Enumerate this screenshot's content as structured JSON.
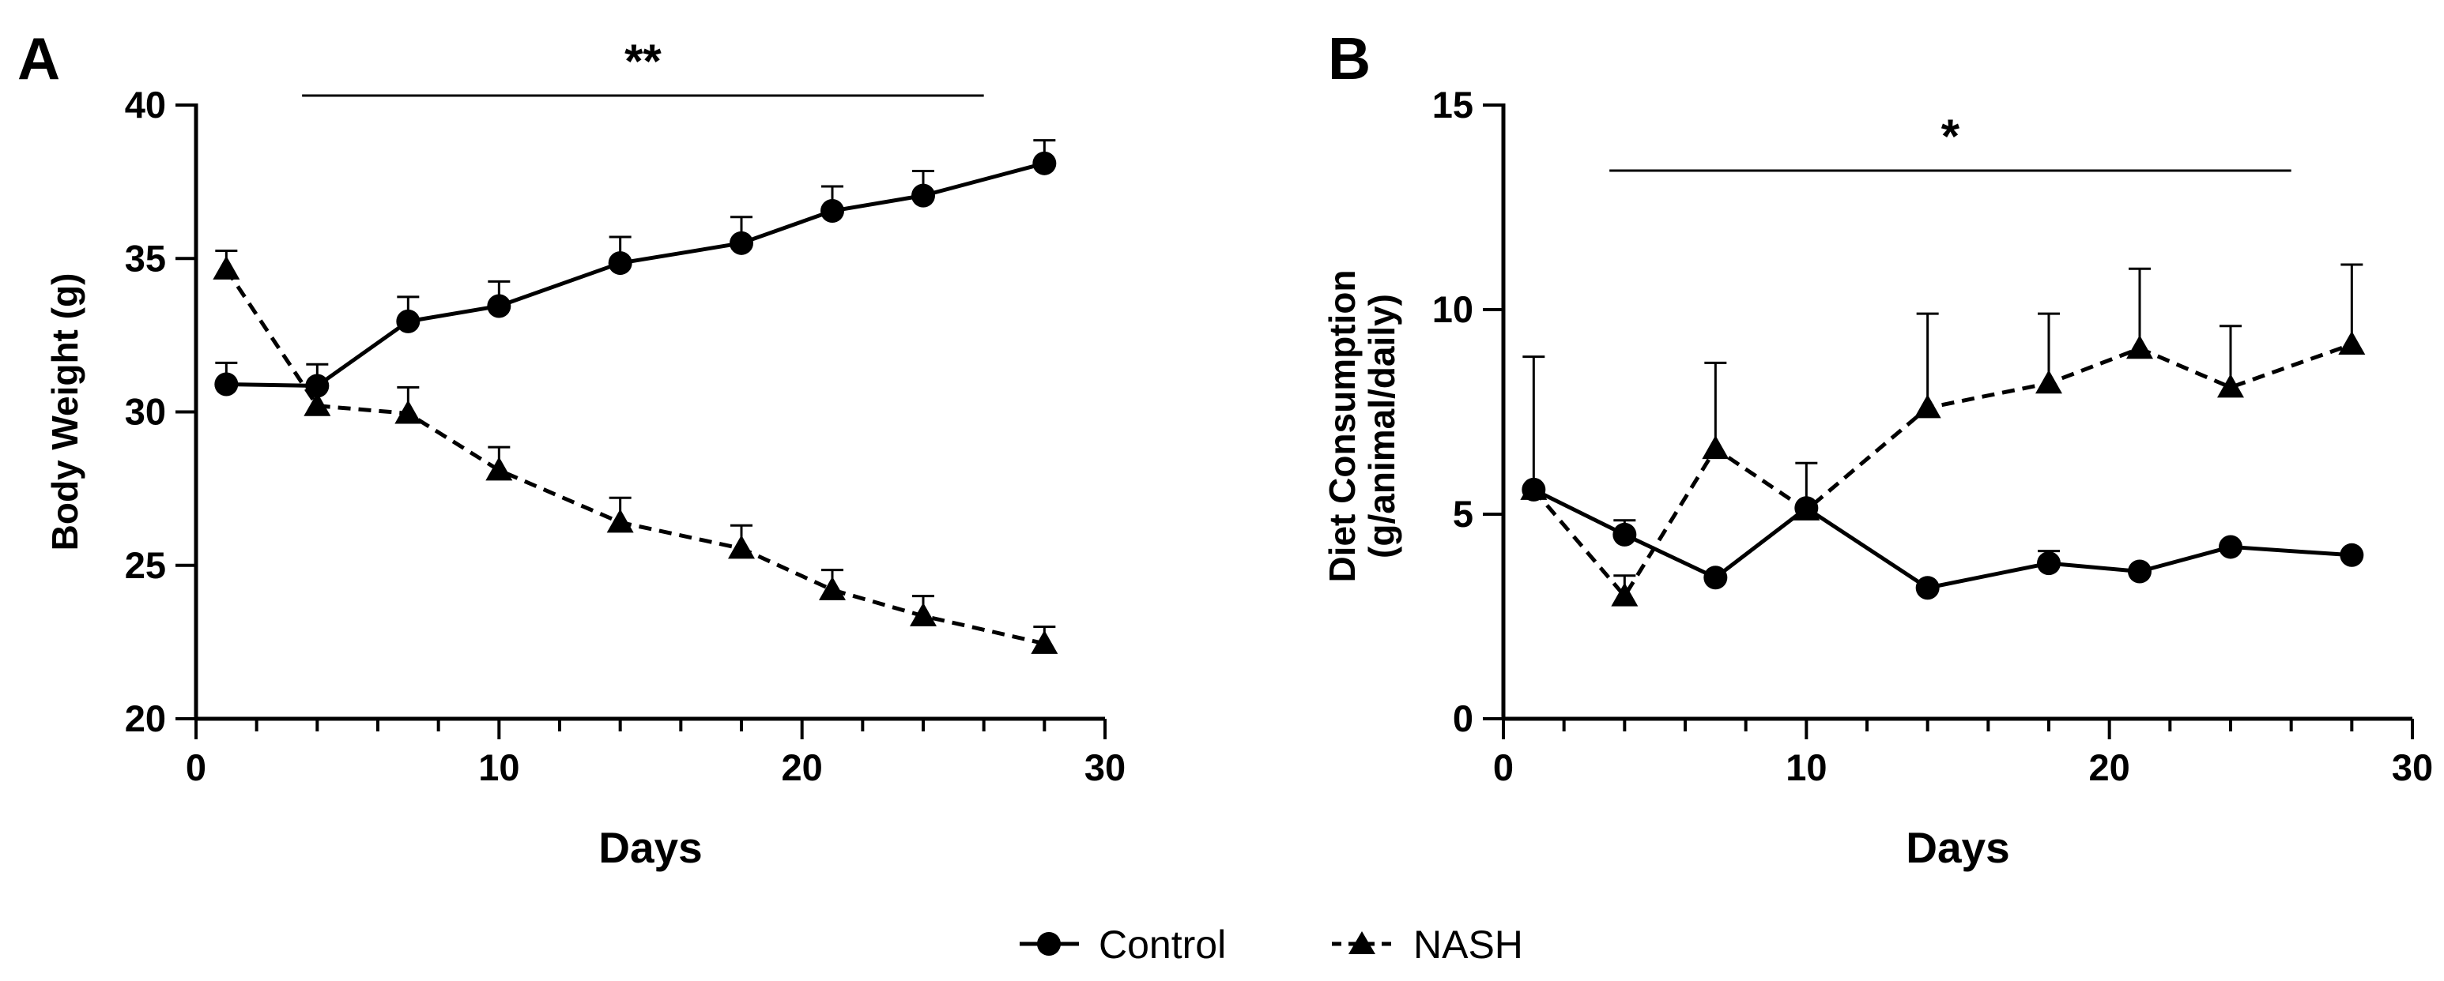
{
  "chart_data": [
    {
      "type": "line",
      "panel": "A",
      "xlabel": "Days",
      "ylabel": "Body Weight (g)",
      "xlim": [
        0,
        30
      ],
      "ylim": [
        20,
        40
      ],
      "xticks": [
        0,
        10,
        20,
        30
      ],
      "yticks": [
        20,
        25,
        30,
        35,
        40
      ],
      "significance": {
        "label": "**",
        "x_start": 3.5,
        "x_end": 26
      },
      "series": [
        {
          "name": "Control",
          "marker": "circle",
          "linestyle": "solid",
          "x": [
            1,
            4,
            7,
            10,
            14,
            18,
            21,
            24,
            28
          ],
          "y": [
            30.9,
            30.85,
            32.95,
            33.45,
            34.85,
            35.5,
            36.55,
            37.05,
            38.1
          ],
          "err": [
            0.7,
            0.7,
            0.8,
            0.8,
            0.85,
            0.85,
            0.8,
            0.8,
            0.75
          ]
        },
        {
          "name": "NASH",
          "marker": "triangle",
          "linestyle": "dashed",
          "x": [
            1,
            4,
            7,
            10,
            14,
            18,
            21,
            24,
            28
          ],
          "y": [
            34.65,
            30.2,
            29.95,
            28.1,
            26.4,
            25.55,
            24.2,
            23.35,
            22.45
          ],
          "err": [
            0.6,
            0.6,
            0.85,
            0.75,
            0.8,
            0.75,
            0.65,
            0.65,
            0.55
          ]
        }
      ]
    },
    {
      "type": "line",
      "panel": "B",
      "xlabel": "Days",
      "ylabel": "Diet Consumption",
      "ylabel_line2": "(g/animal/daily)",
      "xlim": [
        0,
        30
      ],
      "ylim": [
        0,
        15
      ],
      "xticks": [
        0,
        10,
        20,
        30
      ],
      "yticks": [
        0,
        5,
        10,
        15
      ],
      "significance": {
        "label": "*",
        "x_start": 3.5,
        "x_end": 26
      },
      "series": [
        {
          "name": "Control",
          "marker": "circle",
          "linestyle": "solid",
          "x": [
            1,
            4,
            7,
            10,
            14,
            18,
            21,
            24,
            28
          ],
          "y": [
            5.6,
            4.5,
            3.45,
            5.15,
            3.2,
            3.8,
            3.6,
            4.2,
            4.0
          ],
          "err": [
            0,
            0.35,
            0,
            0,
            0,
            0.3,
            0,
            0,
            0
          ]
        },
        {
          "name": "NASH",
          "marker": "triangle",
          "linestyle": "dashed",
          "x": [
            1,
            4,
            7,
            10,
            14,
            18,
            21,
            24,
            28
          ],
          "y": [
            5.6,
            3.0,
            6.6,
            5.1,
            7.6,
            8.2,
            9.05,
            8.1,
            9.15
          ],
          "err": [
            3.25,
            0.5,
            2.1,
            1.15,
            2.3,
            1.7,
            1.95,
            1.5,
            1.95
          ]
        }
      ]
    }
  ],
  "legend": {
    "entries": [
      {
        "label": "Control",
        "marker": "circle",
        "linestyle": "solid"
      },
      {
        "label": "NASH",
        "marker": "triangle",
        "linestyle": "dashed"
      }
    ],
    "placement": "bottom-center"
  },
  "panels": {
    "a_label": "A",
    "b_label": "B"
  }
}
